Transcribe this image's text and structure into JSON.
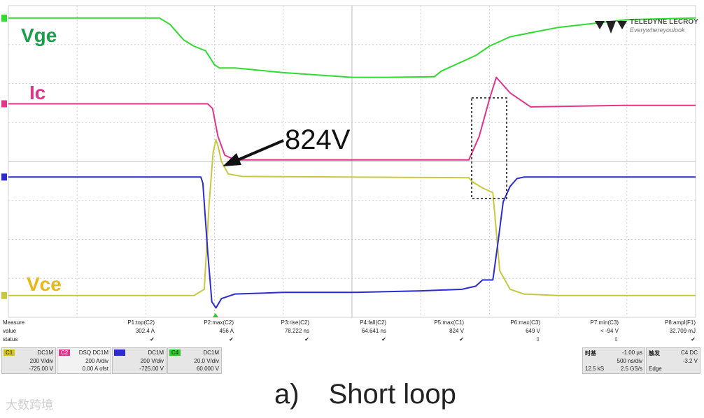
{
  "chart_data": {
    "type": "line",
    "title": "",
    "caption_label": "a)",
    "caption_text": "Short loop",
    "annotation": "824V",
    "grid": true,
    "series": [
      {
        "name": "Vge",
        "color": "#2fdc2f",
        "label_color": "#1aa04a",
        "x": [
          0,
          0.22,
          0.235,
          0.255,
          0.27,
          0.287,
          0.3,
          0.307,
          0.33,
          0.4,
          0.5,
          0.55,
          0.62,
          0.63,
          0.64,
          0.68,
          0.7,
          0.73,
          0.8,
          0.9,
          1.0
        ],
        "y": [
          0.96,
          0.96,
          0.94,
          0.89,
          0.87,
          0.855,
          0.81,
          0.8,
          0.8,
          0.785,
          0.77,
          0.77,
          0.772,
          0.79,
          0.8,
          0.84,
          0.87,
          0.9,
          0.93,
          0.955,
          0.96
        ]
      },
      {
        "name": "Ic",
        "color": "#e0358c",
        "label_color": "#e0358c",
        "x": [
          0,
          0.29,
          0.297,
          0.305,
          0.315,
          0.33,
          0.4,
          0.6,
          0.67,
          0.685,
          0.7,
          0.71,
          0.73,
          0.76,
          0.9,
          1.0
        ],
        "y": [
          0.685,
          0.685,
          0.67,
          0.58,
          0.52,
          0.505,
          0.505,
          0.505,
          0.505,
          0.58,
          0.7,
          0.77,
          0.72,
          0.675,
          0.68,
          0.68
        ],
        "note": "P2:max(C2) 456 A"
      },
      {
        "name": "Vce",
        "color": "#c8c840",
        "label_color": "#e8b818",
        "x": [
          0,
          0.27,
          0.285,
          0.292,
          0.298,
          0.302,
          0.305,
          0.31,
          0.32,
          0.34,
          0.5,
          0.67,
          0.675,
          0.69,
          0.705,
          0.715,
          0.73,
          0.75,
          0.8,
          1.0
        ],
        "y": [
          0.07,
          0.07,
          0.09,
          0.36,
          0.53,
          0.57,
          0.55,
          0.5,
          0.46,
          0.452,
          0.45,
          0.448,
          0.435,
          0.415,
          0.4,
          0.15,
          0.09,
          0.075,
          0.07,
          0.07
        ],
        "note": "P5:max(C1) 824 V"
      },
      {
        "name": "",
        "color": "#2b2bcf",
        "label_color": "#2b2bcf",
        "x": [
          0,
          0.28,
          0.283,
          0.29,
          0.296,
          0.302,
          0.31,
          0.33,
          0.4,
          0.5,
          0.6,
          0.66,
          0.68,
          0.69,
          0.705,
          0.713,
          0.72,
          0.73,
          0.74,
          0.75,
          0.8,
          1.0
        ],
        "y": [
          0.45,
          0.45,
          0.43,
          0.21,
          0.05,
          0.03,
          0.06,
          0.075,
          0.08,
          0.08,
          0.085,
          0.09,
          0.1,
          0.12,
          0.12,
          0.25,
          0.37,
          0.42,
          0.445,
          0.45,
          0.45,
          0.45
        ]
      }
    ]
  },
  "logo": {
    "brand": "TELEDYNE LECROY",
    "slogan": "Everywhereyoulook"
  },
  "measure": {
    "heading": "Measure",
    "row_value": "value",
    "row_status": "status",
    "params": [
      {
        "name": "P1:top(C2)",
        "value": "302.4 A",
        "status": "✔"
      },
      {
        "name": "P2:max(C2)",
        "value": "456 A",
        "status": "✔"
      },
      {
        "name": "P3:rise(C2)",
        "value": "78.222 ns",
        "status": "✔"
      },
      {
        "name": "P4:fall(C2)",
        "value": "64.641 ns",
        "status": "✔"
      },
      {
        "name": "P5:max(C1)",
        "value": "824 V",
        "status": "✔"
      },
      {
        "name": "P6:max(C3)",
        "value": "649 V",
        "status": "⇩"
      },
      {
        "name": "P7:min(C3)",
        "value": "< -94 V",
        "status": "⇩"
      },
      {
        "name": "P8:ampl(F1)",
        "value": "32.709 mJ",
        "status": "✔"
      }
    ]
  },
  "channels": [
    {
      "tag": "C1",
      "coupling": "DC1M",
      "scale": "200 V/div",
      "offset": "-725.00 V",
      "color": "#d4c41a"
    },
    {
      "tag": "C2",
      "coupling": "DSQ DC1M",
      "scale": "200 A/div",
      "offset": "0.00 A ofst",
      "color": "#e0358c"
    },
    {
      "tag": "",
      "coupling": "DC1M",
      "scale": "200 V/div",
      "offset": "-725.00 V",
      "color": "#2b2bcf"
    },
    {
      "tag": "C4",
      "coupling": "DC1M",
      "scale": "20.0 V/div",
      "offset": "60.000 V",
      "color": "#2fc82f"
    }
  ],
  "timebase": {
    "label": "时基",
    "delay": "-1.00 µs",
    "div": "500 ns/div",
    "samples": "12.5 kS",
    "rate": "2.5 GS/s"
  },
  "trigger": {
    "label": "触发",
    "chan": "C4 DC",
    "level": "-3.2 V",
    "type": "Edge"
  },
  "watermark": "大数跨境"
}
